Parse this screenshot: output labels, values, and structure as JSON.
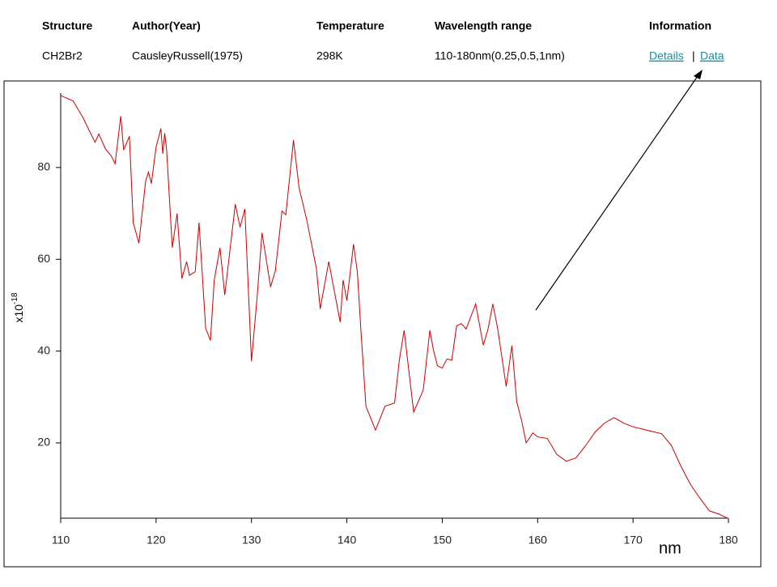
{
  "table": {
    "headers": [
      "Structure",
      "Author(Year)",
      "Temperature",
      "Wavelength range",
      "Information"
    ],
    "row": [
      "CH2Br2",
      "CausleyRussell(1975)",
      "298K",
      "110-180nm(0.25,0.5,1nm)"
    ],
    "links": [
      "Details",
      "Data"
    ],
    "separator": "|"
  },
  "chart_data": {
    "type": "line",
    "color": "#cc0000",
    "y_label": "x10",
    "y_label_exponent": "-18",
    "x_label": "nm",
    "xlim": [
      110,
      180
    ],
    "xticks": [
      110,
      120,
      130,
      140,
      150,
      160,
      170,
      180
    ],
    "ylim": [
      3.6,
      98.5
    ],
    "yticks": [
      20,
      40,
      60,
      80
    ],
    "x": [
      110,
      111.3,
      112.3,
      113,
      113.6,
      114,
      114.7,
      115.3,
      115.7,
      116.3,
      116.6,
      117.2,
      117.6,
      118.2,
      118.9,
      119.2,
      119.5,
      120,
      120.5,
      120.7,
      120.9,
      121.1,
      121.7,
      122.2,
      122.7,
      123.2,
      123.5,
      124.1,
      124.5,
      125.2,
      125.7,
      126.1,
      126.7,
      127.2,
      128.3,
      128.8,
      129.3,
      130,
      130.6,
      131.1,
      132,
      132.5,
      133.2,
      133.6,
      134.4,
      135,
      135.8,
      136.8,
      137.2,
      138.1,
      138.6,
      139.3,
      139.6,
      140,
      140.7,
      141.1,
      141.5,
      142,
      143,
      144,
      145,
      145.5,
      146,
      147,
      148,
      148.7,
      149.1,
      149.5,
      150,
      150.5,
      151,
      151.5,
      152,
      152.5,
      153.5,
      154.3,
      154.8,
      155.3,
      155.8,
      156.7,
      157.3,
      157.8,
      158.3,
      158.8,
      159.5,
      160,
      161,
      162,
      163,
      164,
      165,
      166,
      167,
      168,
      169,
      170,
      171,
      172,
      173,
      174,
      175,
      176,
      177,
      178,
      179,
      180
    ],
    "values": [
      95.7,
      94.5,
      91,
      88,
      85.5,
      87.3,
      84,
      82.5,
      80.8,
      91.2,
      83.8,
      86.8,
      68,
      63.5,
      77,
      79,
      76.5,
      84.5,
      88.5,
      83,
      87.5,
      84,
      62.5,
      70,
      55.8,
      59.5,
      56.5,
      57.3,
      68,
      45,
      42.3,
      55.5,
      62.5,
      52.2,
      72,
      67,
      71,
      37.8,
      52,
      65.8,
      54,
      57.5,
      70.5,
      69.7,
      86,
      75.5,
      68.5,
      58,
      49.2,
      59.5,
      54,
      46.3,
      55.5,
      51,
      63.3,
      57.3,
      43.5,
      28,
      22.8,
      28,
      28.7,
      38,
      44.5,
      26.7,
      31.5,
      44.5,
      40,
      36.8,
      36.3,
      38.3,
      38,
      45.5,
      46,
      44.8,
      50.3,
      41.3,
      44.8,
      50.3,
      45,
      32.3,
      41.2,
      29,
      25,
      20,
      22.2,
      21.3,
      21,
      17.5,
      16,
      16.7,
      19.3,
      22.3,
      24.3,
      25.5,
      24.3,
      23.5,
      23,
      22.5,
      22,
      19.5,
      15,
      11,
      8,
      5.2,
      4.5,
      3.5
    ]
  }
}
